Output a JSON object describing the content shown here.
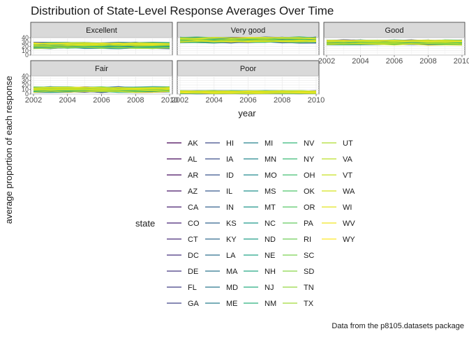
{
  "chart_data": {
    "type": "line",
    "title": "Distribution of State-Level Response Averages Over Time",
    "xlabel": "year",
    "ylabel": "average proportion of each response",
    "caption": "Data from the p8105.datasets package",
    "x": [
      2002,
      2003,
      2004,
      2005,
      2006,
      2007,
      2008,
      2009,
      2010
    ],
    "xticks": [
      "2002",
      "2004",
      "2006",
      "2008",
      "2010"
    ],
    "yticks": [
      "0",
      "10",
      "20",
      "30",
      "40"
    ],
    "ylim": [
      0,
      40
    ],
    "grid": true,
    "legend_title": "state",
    "legend_position": "bottom",
    "states": [
      "AK",
      "AL",
      "AR",
      "AZ",
      "CA",
      "CO",
      "CT",
      "DC",
      "DE",
      "FL",
      "GA",
      "HI",
      "IA",
      "ID",
      "IL",
      "IN",
      "KS",
      "KY",
      "LA",
      "MA",
      "MD",
      "ME",
      "MI",
      "MN",
      "MO",
      "MS",
      "MT",
      "NC",
      "ND",
      "NE",
      "NH",
      "NJ",
      "NM",
      "NV",
      "NY",
      "OH",
      "OK",
      "OR",
      "PA",
      "RI",
      "SC",
      "SD",
      "TN",
      "TX",
      "UT",
      "VA",
      "VT",
      "WA",
      "WI",
      "WV",
      "WY"
    ],
    "palette": [
      "#440154",
      "#481467",
      "#482576",
      "#453781",
      "#3f4788",
      "#39558c",
      "#32648e",
      "#2d718e",
      "#287d8e",
      "#238a8d",
      "#1f968b",
      "#20a386",
      "#29af7f",
      "#3dbc74",
      "#56c667",
      "#75d054",
      "#95d840",
      "#b8de29",
      "#dae319",
      "#fde725"
    ],
    "panels": [
      {
        "name": "Excellent",
        "range": [
          16,
          28
        ]
      },
      {
        "name": "Very good",
        "range": [
          28,
          40
        ]
      },
      {
        "name": "Good",
        "range": [
          24,
          34
        ]
      },
      {
        "name": "Fair",
        "range": [
          5,
          15
        ]
      },
      {
        "name": "Poor",
        "range": [
          1,
          7
        ]
      }
    ]
  }
}
